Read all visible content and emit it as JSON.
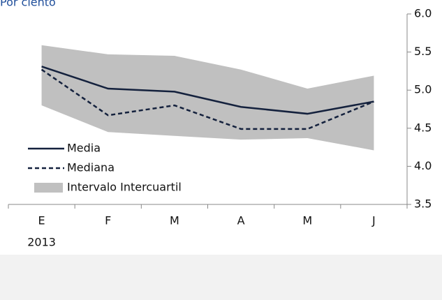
{
  "chart_data": {
    "type": "line",
    "title": "Por ciento",
    "categories": [
      "E",
      "F",
      "M",
      "A",
      "M",
      "J"
    ],
    "x_sublabel": "2013",
    "series": [
      {
        "name": "Media",
        "color": "#14213d",
        "dash": false,
        "values": [
          5.31,
          5.02,
          4.98,
          4.78,
          4.69,
          4.85
        ]
      },
      {
        "name": "Mediana",
        "color": "#14213d",
        "dash": true,
        "values": [
          5.27,
          4.67,
          4.8,
          4.49,
          4.49,
          4.85
        ]
      }
    ],
    "band": {
      "name": "Intervalo Intercuartil",
      "color": "#c0c0c0",
      "upper": [
        5.59,
        5.47,
        5.45,
        5.27,
        5.02,
        5.19
      ],
      "lower": [
        4.8,
        4.45,
        4.4,
        4.35,
        4.37,
        4.21
      ]
    },
    "ylim": [
      3.5,
      6.0
    ],
    "yticks": [
      3.5,
      {
        "value": 4,
        "label": "4.0"
      },
      4.5,
      {
        "value": 5,
        "label": "5.0"
      },
      5.5,
      {
        "value": 6,
        "label": "6.0"
      }
    ],
    "y_axis_side": "right",
    "grid": false
  }
}
